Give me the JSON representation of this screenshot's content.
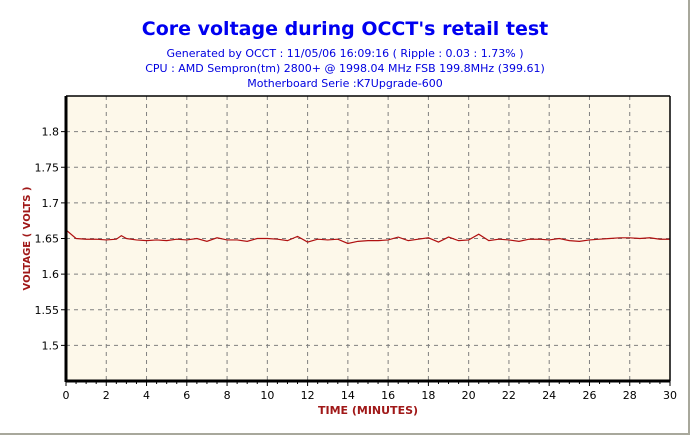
{
  "chart_data": {
    "type": "line",
    "title": "Core voltage during OCCT's retail test",
    "subtitles": [
      "Generated by OCCT : 11/05/06 16:09:16 ( Ripple : 0.03 : 1.73% )",
      "CPU : AMD Sempron(tm) 2800+ @ 1998.04 MHz FSB 199.8MHz (399.61)",
      "Motherboard Serie :K7Upgrade-600"
    ],
    "xlabel": "TIME (MINUTES)",
    "ylabel": "VOLTAGE ( VOLTS )",
    "xlim": [
      0,
      30
    ],
    "ylim": [
      1.45,
      1.85
    ],
    "xticks": [
      "0",
      "2",
      "4",
      "6",
      "8",
      "10",
      "12",
      "14",
      "16",
      "18",
      "20",
      "22",
      "24",
      "26",
      "28",
      "30"
    ],
    "yticks": [
      "1.5",
      "1.55",
      "1.6",
      "1.65",
      "1.7",
      "1.75",
      "1.8"
    ],
    "grid": true,
    "colors": {
      "line": "#b01010",
      "background": "#fdf8ea",
      "title": "#0000f0",
      "axis_label": "#a01818"
    },
    "series": [
      {
        "name": "Core voltage",
        "x": [
          0,
          0.5,
          1,
          1.5,
          2,
          2.5,
          2.75,
          3,
          3.5,
          4,
          4.5,
          5,
          5.5,
          6,
          6.5,
          7,
          7.5,
          8,
          8.5,
          9,
          9.5,
          10,
          10.5,
          11,
          11.5,
          12,
          12.5,
          13,
          13.5,
          14,
          14.5,
          15,
          15.5,
          16,
          16.5,
          17,
          17.5,
          18,
          18.5,
          19,
          19.5,
          20,
          20.5,
          21,
          21.5,
          22,
          22.5,
          23,
          23.5,
          24,
          24.5,
          25,
          25.5,
          26,
          26.5,
          27,
          27.5,
          28,
          28.5,
          29,
          29.5,
          30
        ],
        "y": [
          1.662,
          1.65,
          1.649,
          1.649,
          1.648,
          1.649,
          1.654,
          1.65,
          1.648,
          1.647,
          1.648,
          1.647,
          1.649,
          1.648,
          1.65,
          1.646,
          1.651,
          1.648,
          1.648,
          1.646,
          1.65,
          1.65,
          1.649,
          1.647,
          1.653,
          1.645,
          1.649,
          1.648,
          1.649,
          1.643,
          1.646,
          1.647,
          1.647,
          1.648,
          1.652,
          1.647,
          1.649,
          1.651,
          1.645,
          1.652,
          1.647,
          1.648,
          1.656,
          1.647,
          1.649,
          1.648,
          1.646,
          1.649,
          1.649,
          1.648,
          1.65,
          1.647,
          1.646,
          1.648,
          1.649,
          1.65,
          1.651,
          1.651,
          1.65,
          1.651,
          1.649,
          1.649
        ]
      }
    ]
  }
}
